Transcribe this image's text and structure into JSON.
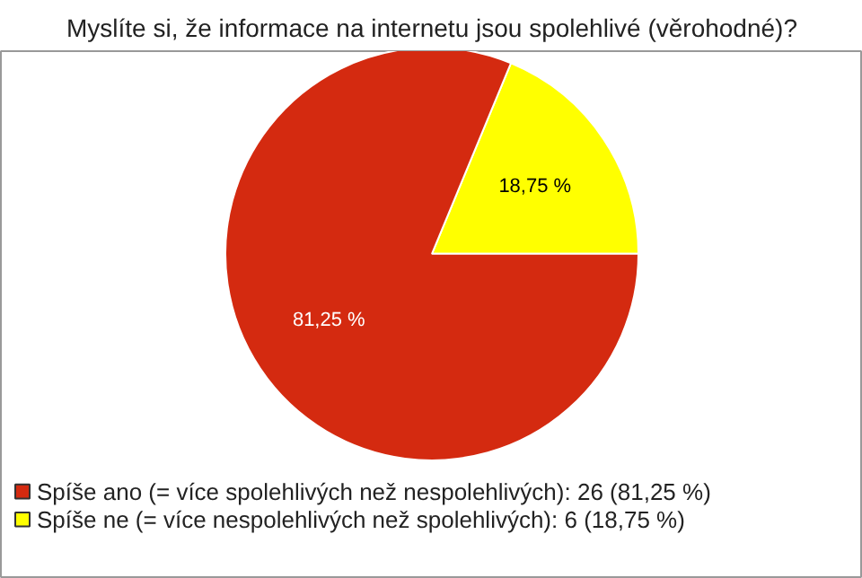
{
  "chart_data": {
    "type": "pie",
    "title": "Myslíte si, že informace na internetu jsou spolehlivé (věrohodné)?",
    "categories": [
      "Spíše ano (= více spolehlivých než nespolehlivých): 26 (81,25 %)",
      "Spíše ne (= více nespolehlivých než spolehlivých): 6 (18,75 %)"
    ],
    "values": [
      81.25,
      18.75
    ],
    "colors": [
      "#d42a10",
      "#ffff00"
    ],
    "value_labels": [
      "81,25 %",
      "18,75 %"
    ],
    "legend": "bottom left"
  }
}
